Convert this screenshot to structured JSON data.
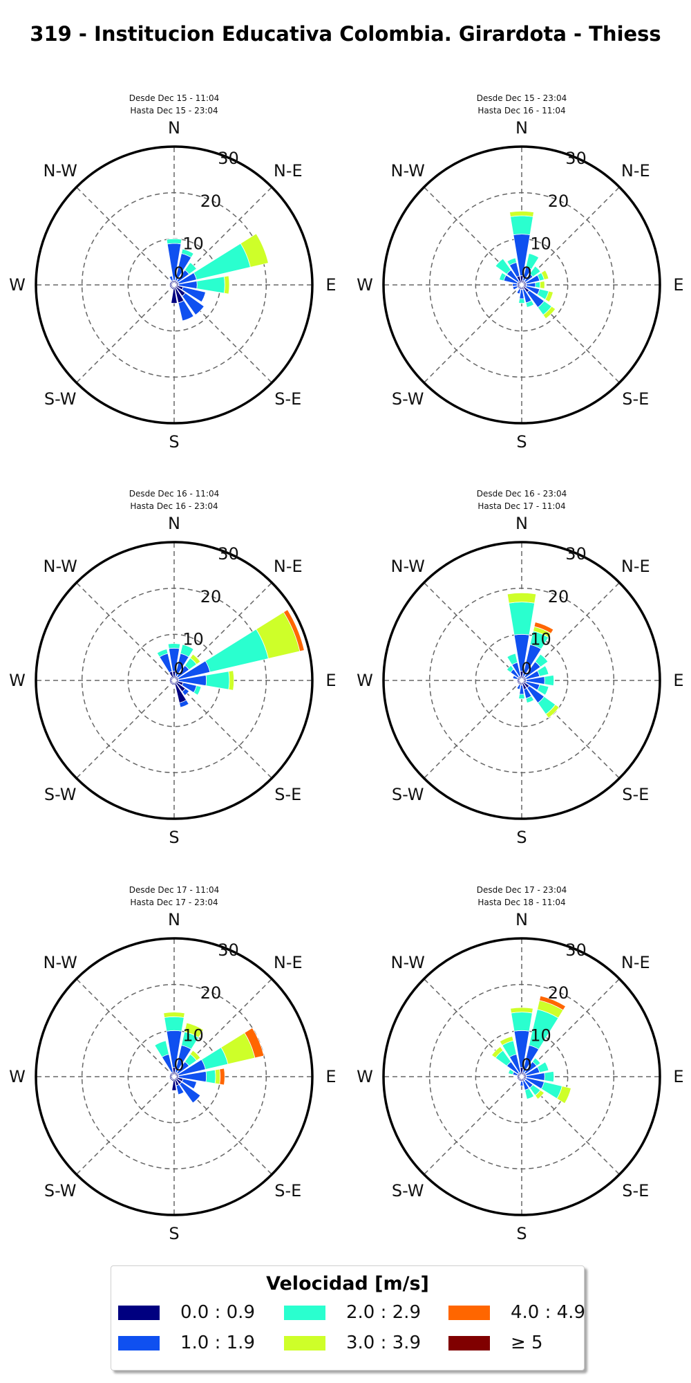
{
  "title": "319 - Institucion Educativa Colombia. Girardota - Thiess",
  "legend": {
    "title": "Velocidad [m/s]",
    "items": [
      {
        "label": "0.0 : 0.9",
        "color": "#000080"
      },
      {
        "label": "1.0 : 1.9",
        "color": "#0f50f0"
      },
      {
        "label": "2.0 : 2.9",
        "color": "#2affcf"
      },
      {
        "label": "3.0 : 3.9",
        "color": "#ceff29"
      },
      {
        "label": "4.0 : 4.9",
        "color": "#ff6600"
      },
      {
        "label": "≥  5",
        "color": "#800000"
      }
    ]
  },
  "chart_data": [
    {
      "type": "windrose",
      "period": [
        "Desde Dec 15 - 11:04",
        "Hasta Dec 15 - 23:04"
      ],
      "compass_labels": [
        "N",
        "N-E",
        "E",
        "S-E",
        "S",
        "S-W",
        "W",
        "N-W"
      ],
      "radial_ticks": [
        0,
        10,
        20,
        30
      ],
      "rlim": [
        0,
        30
      ],
      "bins": [
        "0.0 : 0.9",
        "1.0 : 1.9",
        "2.0 : 2.9",
        "3.0 : 3.9",
        "4.0 : 4.9",
        "≥  5"
      ],
      "direction_deg": [
        0,
        22.5,
        45,
        67.5,
        90,
        112.5,
        135,
        157.5,
        180,
        202.5,
        225,
        247.5,
        270,
        292.5,
        315,
        337.5
      ],
      "counts": [
        [
          1,
          8,
          1,
          0,
          0,
          0
        ],
        [
          1,
          6,
          1,
          0,
          0,
          0
        ],
        [
          1,
          3,
          2,
          0,
          0,
          0
        ],
        [
          1,
          4,
          12,
          4,
          0,
          0
        ],
        [
          1,
          4,
          6,
          1,
          0,
          0
        ],
        [
          2,
          5,
          0,
          0,
          0,
          0
        ],
        [
          3,
          5,
          0,
          0,
          0,
          0
        ],
        [
          4,
          4,
          0,
          0,
          0,
          0
        ],
        [
          4,
          0,
          0,
          0,
          0,
          0
        ],
        [
          1,
          0,
          0,
          0,
          0,
          0
        ],
        [
          1,
          0,
          0,
          0,
          0,
          0
        ],
        [
          1,
          0,
          0,
          0,
          0,
          0
        ],
        [
          1,
          0,
          0,
          0,
          0,
          0
        ],
        [
          1,
          0,
          0,
          0,
          0,
          0
        ],
        [
          1,
          0,
          0,
          0,
          0,
          0
        ],
        [
          1,
          1,
          0,
          0,
          0,
          0
        ]
      ]
    },
    {
      "type": "windrose",
      "period": [
        "Desde Dec 15 - 23:04",
        "Hasta Dec 16 - 11:04"
      ],
      "compass_labels": [
        "N",
        "N-E",
        "E",
        "S-E",
        "S",
        "S-W",
        "W",
        "N-W"
      ],
      "radial_ticks": [
        0,
        10,
        20,
        30
      ],
      "rlim": [
        0,
        30
      ],
      "bins": [
        "0.0 : 0.9",
        "1.0 : 1.9",
        "2.0 : 2.9",
        "3.0 : 3.9",
        "4.0 : 4.9",
        "≥  5"
      ],
      "direction_deg": [
        0,
        22.5,
        45,
        67.5,
        90,
        112.5,
        135,
        157.5,
        180,
        202.5,
        225,
        247.5,
        270,
        292.5,
        315,
        337.5
      ],
      "counts": [
        [
          2,
          9,
          4,
          1,
          0,
          0
        ],
        [
          1,
          3,
          3,
          0,
          0,
          0
        ],
        [
          1,
          2,
          2,
          0,
          0,
          0
        ],
        [
          1,
          3,
          1,
          1,
          0,
          0
        ],
        [
          1,
          2,
          1,
          1,
          0,
          0
        ],
        [
          1,
          3,
          2,
          1,
          0,
          0
        ],
        [
          2,
          4,
          2,
          1,
          0,
          0
        ],
        [
          1,
          3,
          1,
          0,
          0,
          0
        ],
        [
          1,
          2,
          1,
          0,
          0,
          0
        ],
        [
          1,
          1,
          0,
          0,
          0,
          0
        ],
        [
          1,
          0,
          0,
          0,
          0,
          0
        ],
        [
          1,
          1,
          0,
          0,
          0,
          0
        ],
        [
          1,
          1,
          0,
          0,
          0,
          0
        ],
        [
          1,
          3,
          1,
          0,
          0,
          0
        ],
        [
          1,
          3,
          3,
          0,
          0,
          0
        ],
        [
          2,
          3,
          1,
          0,
          0,
          0
        ]
      ]
    },
    {
      "type": "windrose",
      "period": [
        "Desde Dec 16 - 11:04",
        "Hasta Dec 16 - 23:04"
      ],
      "compass_labels": [
        "N",
        "N-E",
        "E",
        "S-E",
        "S",
        "S-W",
        "W",
        "N-W"
      ],
      "radial_ticks": [
        0,
        10,
        20,
        30
      ],
      "rlim": [
        0,
        30
      ],
      "bins": [
        "0.0 : 0.9",
        "1.0 : 1.9",
        "2.0 : 2.9",
        "3.0 : 3.9",
        "4.0 : 4.9",
        "≥  5"
      ],
      "direction_deg": [
        0,
        22.5,
        45,
        67.5,
        90,
        112.5,
        135,
        157.5,
        180,
        202.5,
        225,
        247.5,
        270,
        292.5,
        315,
        337.5
      ],
      "counts": [
        [
          2,
          5,
          1,
          0,
          0,
          0
        ],
        [
          1,
          5,
          2,
          0,
          0,
          0
        ],
        [
          1,
          3,
          2,
          1,
          0,
          0
        ],
        [
          1,
          7,
          13,
          7,
          1,
          0
        ],
        [
          1,
          6,
          5,
          1,
          0,
          0
        ],
        [
          2,
          3,
          1,
          0,
          0,
          0
        ],
        [
          3,
          1,
          0,
          0,
          0,
          0
        ],
        [
          5,
          1,
          0,
          0,
          0,
          0
        ],
        [
          1,
          0,
          0,
          0,
          0,
          0
        ],
        [
          1,
          0,
          0,
          0,
          0,
          0
        ],
        [
          1,
          0,
          0,
          0,
          0,
          0
        ],
        [
          1,
          0,
          0,
          0,
          0,
          0
        ],
        [
          1,
          0,
          0,
          0,
          0,
          0
        ],
        [
          1,
          0,
          0,
          0,
          0,
          0
        ],
        [
          1,
          0,
          0,
          0,
          0,
          0
        ],
        [
          2,
          4,
          1,
          0,
          0,
          0
        ]
      ]
    },
    {
      "type": "windrose",
      "period": [
        "Desde Dec 16 - 23:04",
        "Hasta Dec 17 - 11:04"
      ],
      "compass_labels": [
        "N",
        "N-E",
        "E",
        "S-E",
        "S",
        "S-W",
        "W",
        "N-W"
      ],
      "radial_ticks": [
        0,
        10,
        20,
        30
      ],
      "rlim": [
        0,
        30
      ],
      "bins": [
        "0.0 : 0.9",
        "1.0 : 1.9",
        "2.0 : 2.9",
        "3.0 : 3.9",
        "4.0 : 4.9",
        "≥  5"
      ],
      "direction_deg": [
        0,
        22.5,
        45,
        67.5,
        90,
        112.5,
        135,
        157.5,
        180,
        202.5,
        225,
        247.5,
        270,
        292.5,
        315,
        337.5
      ],
      "counts": [
        [
          2,
          8,
          7,
          2,
          0,
          0
        ],
        [
          1,
          7,
          3,
          1,
          1,
          0
        ],
        [
          1,
          4,
          2,
          0,
          0,
          0
        ],
        [
          1,
          3,
          2,
          0,
          0,
          0
        ],
        [
          1,
          4,
          2,
          0,
          0,
          0
        ],
        [
          1,
          3,
          2,
          0,
          0,
          0
        ],
        [
          2,
          4,
          3,
          1,
          0,
          0
        ],
        [
          2,
          2,
          1,
          0,
          0,
          0
        ],
        [
          1,
          2,
          1,
          0,
          0,
          0
        ],
        [
          1,
          1,
          0,
          0,
          0,
          0
        ],
        [
          1,
          0,
          0,
          0,
          0,
          0
        ],
        [
          1,
          0,
          0,
          0,
          0,
          0
        ],
        [
          1,
          0,
          0,
          0,
          0,
          0
        ],
        [
          1,
          1,
          0,
          0,
          0,
          0
        ],
        [
          1,
          2,
          1,
          0,
          0,
          0
        ],
        [
          1,
          3,
          2,
          0,
          0,
          0
        ]
      ]
    },
    {
      "type": "windrose",
      "period": [
        "Desde Dec 17 - 11:04",
        "Hasta Dec 17 - 23:04"
      ],
      "compass_labels": [
        "N",
        "N-E",
        "E",
        "S-E",
        "S",
        "S-W",
        "W",
        "N-W"
      ],
      "radial_ticks": [
        0,
        10,
        20,
        30
      ],
      "rlim": [
        0,
        30
      ],
      "bins": [
        "0.0 : 0.9",
        "1.0 : 1.9",
        "2.0 : 2.9",
        "3.0 : 3.9",
        "4.0 : 4.9",
        "≥  5"
      ],
      "direction_deg": [
        0,
        22.5,
        45,
        67.5,
        90,
        112.5,
        135,
        157.5,
        180,
        202.5,
        225,
        247.5,
        270,
        292.5,
        315,
        337.5
      ],
      "counts": [
        [
          2,
          8,
          3,
          1,
          0,
          0
        ],
        [
          1,
          6,
          3,
          2,
          0,
          0
        ],
        [
          1,
          3,
          2,
          1,
          0,
          0
        ],
        [
          1,
          6,
          5,
          6,
          2,
          0
        ],
        [
          1,
          6,
          2,
          1,
          1,
          0
        ],
        [
          2,
          3,
          0,
          0,
          0,
          0
        ],
        [
          2,
          5,
          0,
          0,
          0,
          0
        ],
        [
          2,
          2,
          0,
          0,
          0,
          0
        ],
        [
          3,
          0,
          0,
          0,
          0,
          0
        ],
        [
          1,
          0,
          0,
          0,
          0,
          0
        ],
        [
          1,
          0,
          0,
          0,
          0,
          0
        ],
        [
          1,
          0,
          0,
          0,
          0,
          0
        ],
        [
          1,
          0,
          0,
          0,
          0,
          0
        ],
        [
          1,
          0,
          0,
          0,
          0,
          0
        ],
        [
          1,
          0,
          0,
          0,
          0,
          0
        ],
        [
          1,
          4,
          3,
          0,
          0,
          0
        ]
      ]
    },
    {
      "type": "windrose",
      "period": [
        "Desde Dec 17 - 23:04",
        "Hasta Dec 18 - 11:04"
      ],
      "compass_labels": [
        "N",
        "N-E",
        "E",
        "S-E",
        "S",
        "S-W",
        "W",
        "N-W"
      ],
      "radial_ticks": [
        0,
        10,
        20,
        30
      ],
      "rlim": [
        0,
        30
      ],
      "bins": [
        "0.0 : 0.9",
        "1.0 : 1.9",
        "2.0 : 2.9",
        "3.0 : 3.9",
        "4.0 : 4.9",
        "≥  5"
      ],
      "direction_deg": [
        0,
        22.5,
        45,
        67.5,
        90,
        112.5,
        135,
        157.5,
        180,
        202.5,
        225,
        247.5,
        270,
        292.5,
        315,
        337.5
      ],
      "counts": [
        [
          2,
          8,
          4,
          1,
          0,
          0
        ],
        [
          1,
          6,
          8,
          2,
          1,
          0
        ],
        [
          1,
          3,
          1,
          0,
          0,
          0
        ],
        [
          1,
          3,
          2,
          0,
          0,
          0
        ],
        [
          1,
          4,
          2,
          0,
          0,
          0
        ],
        [
          1,
          4,
          4,
          2,
          0,
          0
        ],
        [
          1,
          2,
          2,
          1,
          0,
          0
        ],
        [
          1,
          2,
          2,
          0,
          0,
          0
        ],
        [
          1,
          1,
          0,
          0,
          0,
          0
        ],
        [
          1,
          0,
          0,
          0,
          0,
          0
        ],
        [
          1,
          0,
          0,
          0,
          0,
          0
        ],
        [
          1,
          0,
          0,
          0,
          0,
          0
        ],
        [
          1,
          0,
          0,
          0,
          0,
          0
        ],
        [
          1,
          1,
          1,
          0,
          0,
          0
        ],
        [
          1,
          3,
          3,
          1,
          0,
          0
        ],
        [
          1,
          4,
          3,
          1,
          0,
          0
        ]
      ]
    }
  ]
}
